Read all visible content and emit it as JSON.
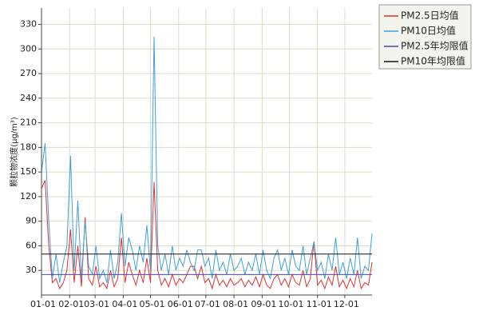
{
  "chart_data": {
    "type": "line",
    "y_label": "颗粒物浓度(μg/m³)",
    "xlim": [
      0,
      364
    ],
    "ylim": [
      0,
      350
    ],
    "xticks": [
      {
        "value": 0,
        "label": "01-01"
      },
      {
        "value": 31,
        "label": "02-01"
      },
      {
        "value": 59,
        "label": "03-01"
      },
      {
        "value": 90,
        "label": "04-01"
      },
      {
        "value": 120,
        "label": "05-01"
      },
      {
        "value": 151,
        "label": "06-01"
      },
      {
        "value": 181,
        "label": "07-01"
      },
      {
        "value": 212,
        "label": "08-01"
      },
      {
        "value": 243,
        "label": "09-01"
      },
      {
        "value": 273,
        "label": "10-01"
      },
      {
        "value": 304,
        "label": "11-01"
      },
      {
        "value": 334,
        "label": "12-01"
      }
    ],
    "yticks": [
      30,
      60,
      90,
      120,
      150,
      180,
      210,
      240,
      270,
      300,
      330
    ],
    "grid": true,
    "series": [
      {
        "name": "PM2.5日均值",
        "color": "#e03030",
        "x": [
          0,
          4,
          8,
          12,
          16,
          20,
          24,
          28,
          32,
          36,
          40,
          44,
          48,
          52,
          56,
          60,
          64,
          68,
          72,
          76,
          80,
          84,
          88,
          92,
          96,
          100,
          104,
          108,
          112,
          116,
          120,
          124,
          128,
          132,
          136,
          140,
          144,
          148,
          152,
          156,
          160,
          164,
          168,
          172,
          176,
          180,
          184,
          188,
          192,
          196,
          200,
          204,
          208,
          212,
          216,
          220,
          224,
          228,
          232,
          236,
          240,
          244,
          248,
          252,
          256,
          260,
          264,
          268,
          272,
          276,
          280,
          284,
          288,
          292,
          296,
          300,
          304,
          308,
          312,
          316,
          320,
          324,
          328,
          332,
          336,
          340,
          344,
          348,
          352,
          356,
          360,
          364
        ],
        "values": [
          130,
          140,
          60,
          15,
          20,
          8,
          15,
          30,
          80,
          15,
          60,
          10,
          95,
          20,
          12,
          35,
          10,
          15,
          8,
          30,
          10,
          20,
          70,
          15,
          40,
          25,
          12,
          30,
          15,
          45,
          15,
          138,
          30,
          12,
          20,
          10,
          25,
          12,
          20,
          15,
          25,
          35,
          35,
          20,
          35,
          15,
          20,
          8,
          25,
          12,
          18,
          10,
          20,
          12,
          15,
          20,
          10,
          18,
          12,
          22,
          10,
          25,
          12,
          8,
          20,
          25,
          12,
          20,
          10,
          25,
          15,
          12,
          30,
          10,
          20,
          65,
          12,
          18,
          8,
          22,
          12,
          35,
          10,
          18,
          8,
          20,
          10,
          30,
          8,
          15,
          12,
          40
        ]
      },
      {
        "name": "PM10日均值",
        "color": "#3ea0d8",
        "x": [
          0,
          4,
          8,
          12,
          16,
          20,
          24,
          28,
          32,
          36,
          40,
          44,
          48,
          52,
          56,
          60,
          64,
          68,
          72,
          76,
          80,
          84,
          88,
          92,
          96,
          100,
          104,
          108,
          112,
          116,
          120,
          124,
          128,
          132,
          136,
          140,
          144,
          148,
          152,
          156,
          160,
          164,
          168,
          172,
          176,
          180,
          184,
          188,
          192,
          196,
          200,
          204,
          208,
          212,
          216,
          220,
          224,
          228,
          232,
          236,
          240,
          244,
          248,
          252,
          256,
          260,
          264,
          268,
          272,
          276,
          280,
          284,
          288,
          292,
          296,
          300,
          304,
          308,
          312,
          316,
          320,
          324,
          328,
          332,
          336,
          340,
          344,
          348,
          352,
          356,
          360,
          364
        ],
        "values": [
          150,
          185,
          90,
          20,
          50,
          15,
          40,
          60,
          170,
          30,
          115,
          20,
          90,
          35,
          25,
          60,
          20,
          30,
          15,
          55,
          20,
          40,
          100,
          35,
          70,
          55,
          30,
          60,
          40,
          85,
          30,
          315,
          60,
          30,
          50,
          25,
          60,
          30,
          45,
          35,
          55,
          40,
          30,
          55,
          55,
          35,
          45,
          20,
          55,
          30,
          40,
          25,
          50,
          30,
          35,
          45,
          25,
          40,
          30,
          50,
          25,
          55,
          30,
          20,
          45,
          55,
          30,
          45,
          25,
          55,
          35,
          30,
          60,
          25,
          45,
          65,
          30,
          40,
          20,
          50,
          30,
          70,
          25,
          40,
          20,
          45,
          25,
          70,
          20,
          35,
          30,
          75
        ]
      },
      {
        "name": "PM2.5年均限值",
        "color": "#4848b0",
        "x": [
          0,
          364
        ],
        "values": [
          25,
          25
        ]
      },
      {
        "name": "PM10年均限值",
        "color": "#111111",
        "x": [
          0,
          364
        ],
        "values": [
          50,
          50
        ]
      }
    ]
  }
}
